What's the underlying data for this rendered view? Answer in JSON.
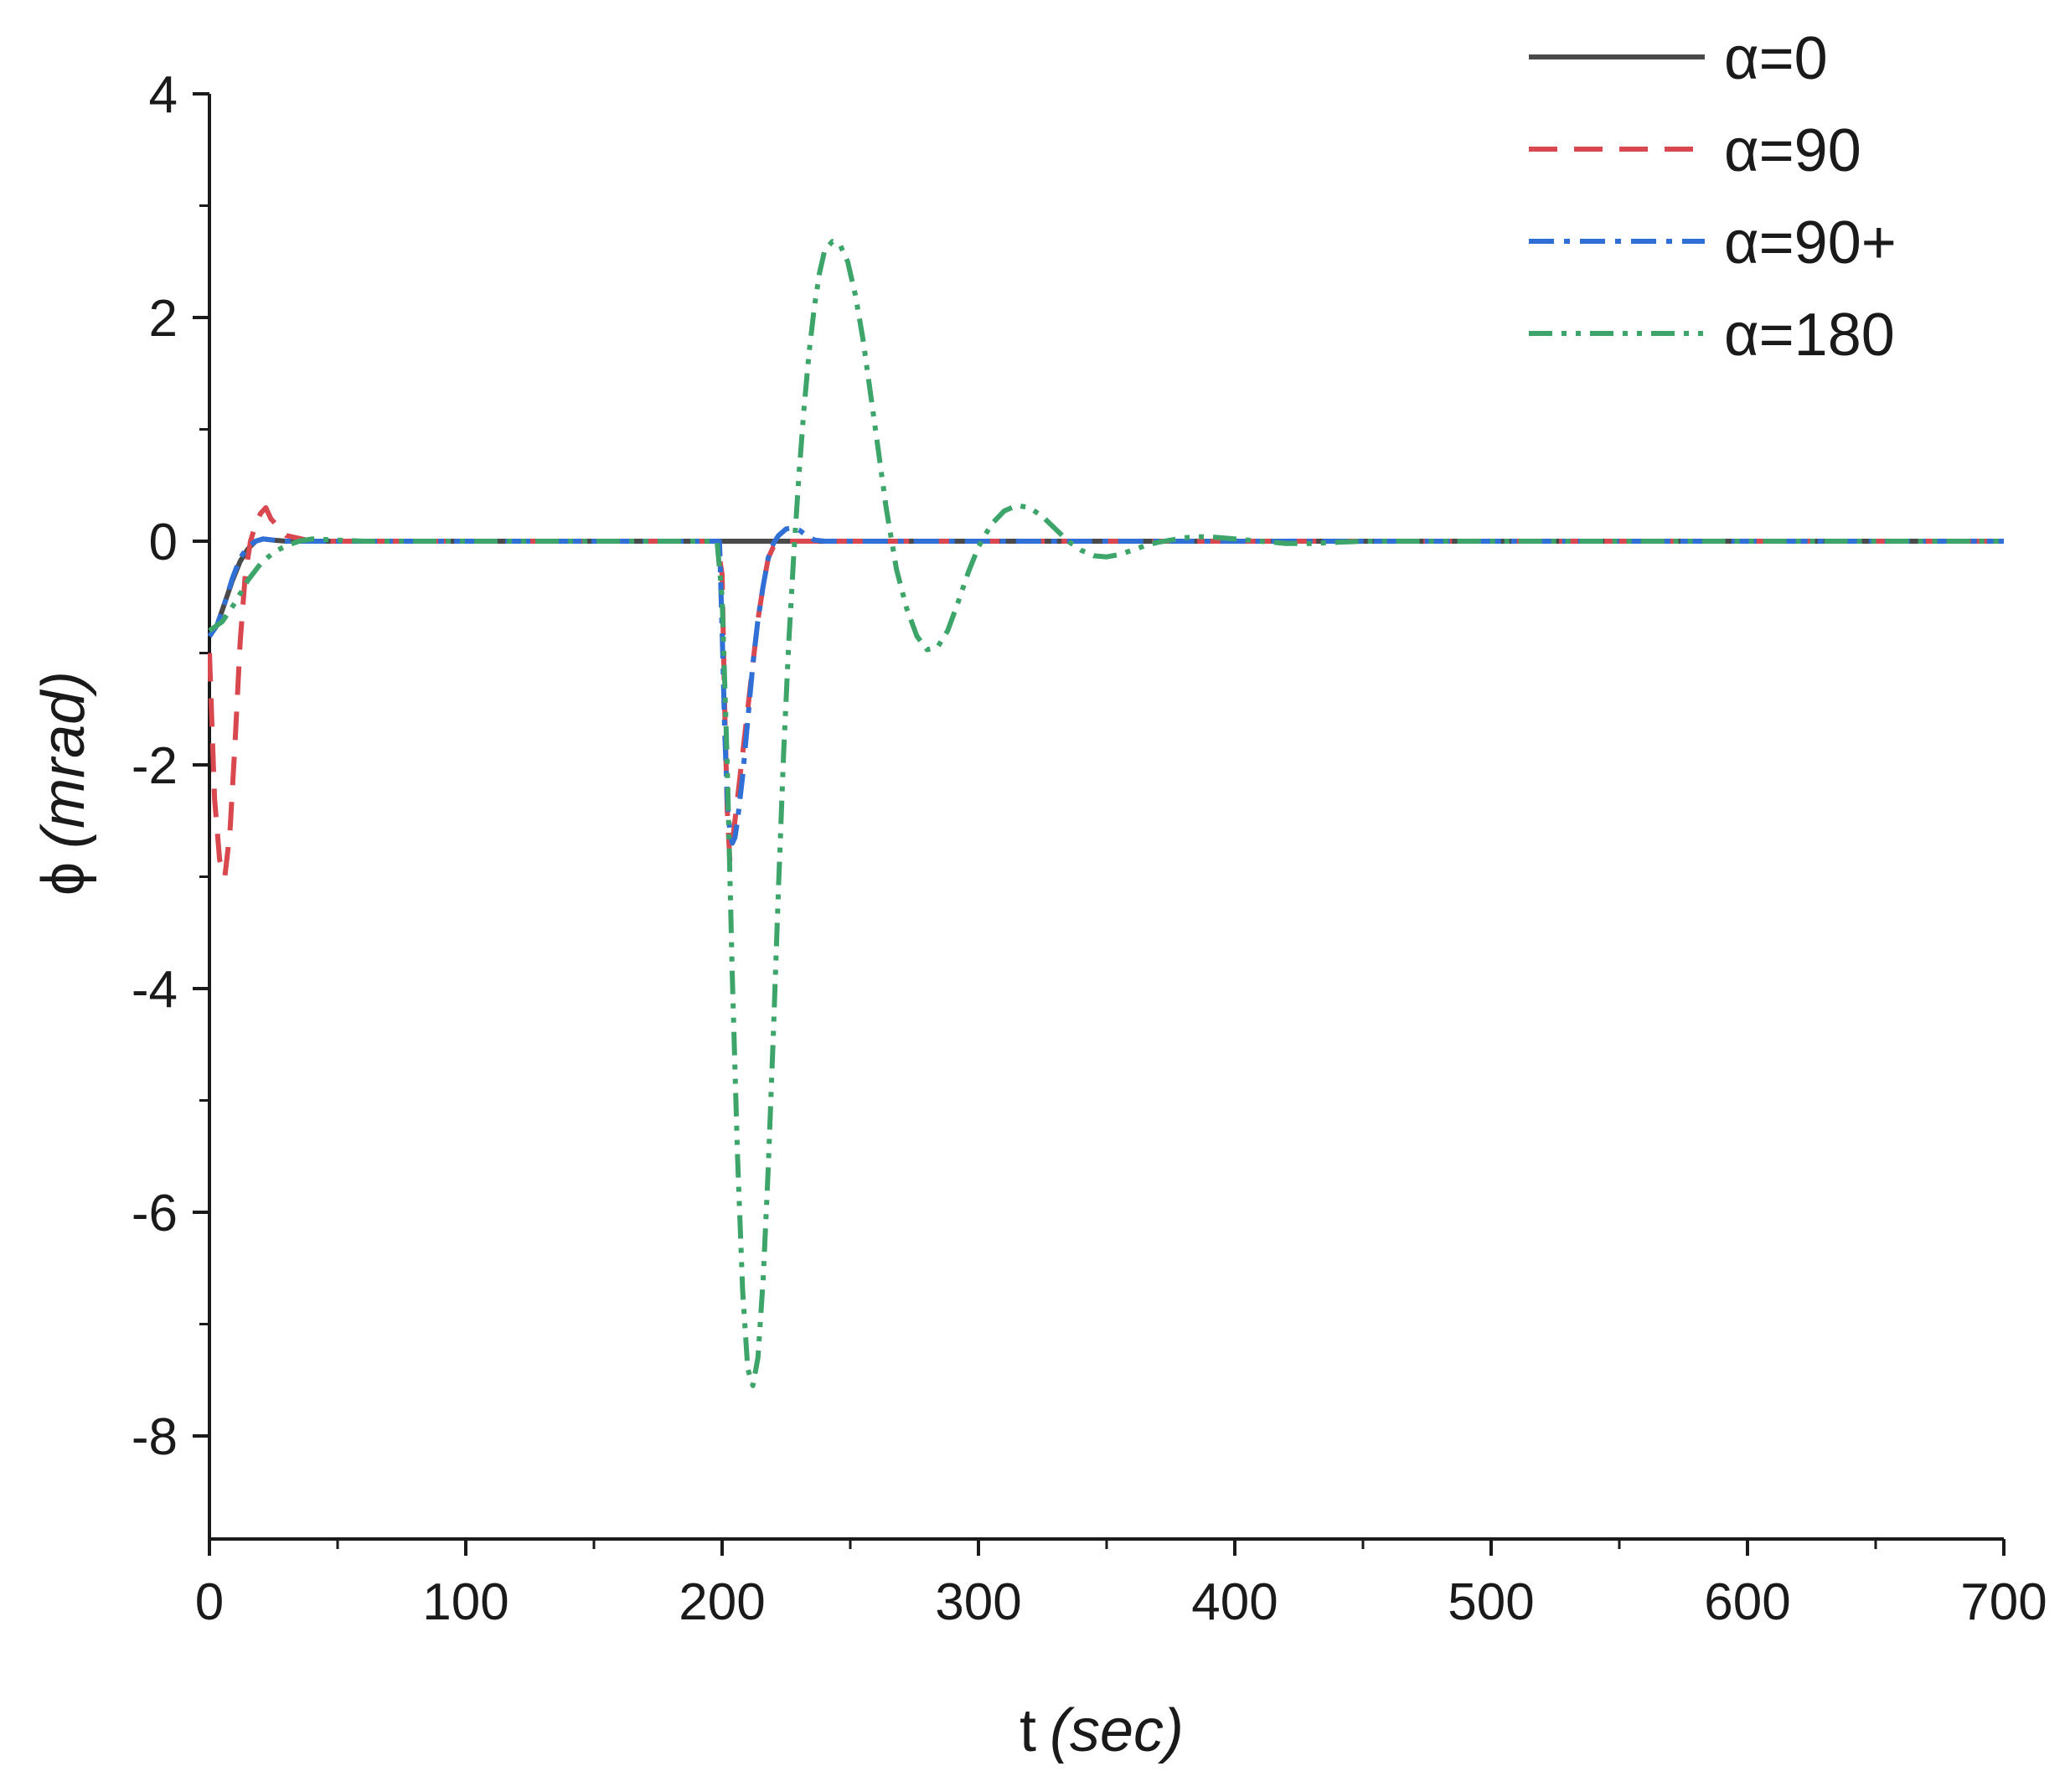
{
  "chart_data": {
    "type": "line",
    "xlabel_main": "t",
    "xlabel_unit": "(sec)",
    "ylabel_main": "ϕ",
    "ylabel_unit": "(mrad)",
    "xlim": [
      0,
      700
    ],
    "ylim": [
      -9,
      4
    ],
    "x_ticks": [
      0,
      100,
      200,
      300,
      400,
      500,
      600,
      700
    ],
    "x_tick_labels": [
      "0",
      "100",
      "200",
      "300",
      "400",
      "500",
      "600",
      "700"
    ],
    "y_ticks": [
      4,
      2,
      0,
      -2,
      -4,
      -6,
      -8
    ],
    "y_tick_labels": [
      "4",
      "2",
      "0",
      "-2",
      "-4",
      "-6",
      "-8"
    ],
    "x_minor_step": 50,
    "y_minor_step": 1,
    "grid": false,
    "legend_position": "top-right",
    "series": [
      {
        "name": "α=0",
        "color": "#4a4a4a",
        "dash": "solid",
        "x": [
          0,
          3,
          6,
          9,
          12,
          15,
          18,
          21,
          25,
          30,
          40,
          60,
          100,
          200,
          300,
          400,
          500,
          600,
          700
        ],
        "y": [
          -0.85,
          -0.75,
          -0.55,
          -0.35,
          -0.18,
          -0.07,
          0.0,
          0.02,
          0.01,
          0.0,
          0.0,
          0.0,
          0.0,
          0.0,
          0.0,
          0.0,
          0.0,
          0.0,
          0.0
        ]
      },
      {
        "name": "α=90",
        "color": "#d9474f",
        "dash": "dashed",
        "x": [
          0,
          2,
          4,
          6,
          8,
          10,
          12,
          14,
          16,
          18,
          20,
          22,
          24,
          30,
          40,
          60,
          100,
          150,
          198,
          200,
          201,
          202,
          203,
          204,
          206,
          208,
          210,
          212,
          214,
          216,
          218,
          220,
          225,
          240,
          300,
          400,
          500,
          600,
          700
        ],
        "y": [
          -1.0,
          -2.3,
          -2.85,
          -3.0,
          -2.6,
          -1.8,
          -0.9,
          -0.3,
          0.0,
          0.15,
          0.25,
          0.3,
          0.2,
          0.05,
          0.0,
          0.0,
          0.0,
          0.0,
          0.0,
          -0.3,
          -1.5,
          -2.4,
          -2.85,
          -2.7,
          -2.3,
          -1.9,
          -1.5,
          -1.1,
          -0.7,
          -0.4,
          -0.15,
          -0.05,
          0.0,
          0.0,
          0.0,
          0.0,
          0.0,
          0.0,
          0.0
        ]
      },
      {
        "name": "α=90+",
        "color": "#2f6fd6",
        "dash": "dashdot",
        "x": [
          0,
          3,
          6,
          9,
          12,
          15,
          18,
          21,
          25,
          30,
          40,
          60,
          100,
          150,
          199,
          200,
          201,
          202,
          203,
          204,
          205,
          206,
          207,
          208,
          210,
          212,
          214,
          216,
          218,
          220,
          222,
          225,
          228,
          230,
          233,
          236,
          240,
          300,
          400,
          500,
          600,
          700
        ],
        "y": [
          -0.85,
          -0.75,
          -0.55,
          -0.33,
          -0.15,
          -0.05,
          0.0,
          0.02,
          0.01,
          0.0,
          0.0,
          0.0,
          0.0,
          0.0,
          0.0,
          -0.8,
          -1.7,
          -2.3,
          -2.6,
          -2.7,
          -2.65,
          -2.5,
          -2.3,
          -2.1,
          -1.6,
          -1.1,
          -0.7,
          -0.4,
          -0.15,
          -0.02,
          0.05,
          0.11,
          0.12,
          0.1,
          0.05,
          0.01,
          0.0,
          0.0,
          0.0,
          0.0,
          0.0,
          0.0
        ]
      },
      {
        "name": "α=180",
        "color": "#3da56a",
        "dash": "dashdotdot",
        "x": [
          0,
          5,
          10,
          15,
          20,
          25,
          30,
          35,
          40,
          50,
          60,
          100,
          150,
          198,
          200,
          202,
          204,
          206,
          208,
          210,
          212,
          214,
          216,
          218,
          220,
          222,
          224,
          226,
          228,
          230,
          232,
          234,
          236,
          238,
          240,
          243,
          246,
          249,
          252,
          255,
          258,
          261,
          264,
          268,
          272,
          276,
          280,
          284,
          288,
          292,
          296,
          300,
          305,
          310,
          315,
          320,
          325,
          330,
          335,
          340,
          345,
          350,
          355,
          360,
          365,
          370,
          375,
          380,
          385,
          390,
          395,
          400,
          410,
          420,
          430,
          440,
          450,
          500,
          600,
          700
        ],
        "y": [
          -0.8,
          -0.72,
          -0.55,
          -0.35,
          -0.2,
          -0.1,
          -0.04,
          0.0,
          0.02,
          0.01,
          0.0,
          0.0,
          0.0,
          0.0,
          -0.5,
          -2.0,
          -3.9,
          -5.5,
          -6.7,
          -7.4,
          -7.55,
          -7.3,
          -6.6,
          -5.6,
          -4.4,
          -3.1,
          -1.9,
          -0.9,
          -0.1,
          0.6,
          1.2,
          1.7,
          2.1,
          2.4,
          2.6,
          2.68,
          2.65,
          2.5,
          2.2,
          1.8,
          1.3,
          0.8,
          0.3,
          -0.25,
          -0.6,
          -0.85,
          -0.97,
          -0.95,
          -0.8,
          -0.55,
          -0.28,
          -0.05,
          0.15,
          0.27,
          0.32,
          0.3,
          0.22,
          0.11,
          0.0,
          -0.08,
          -0.13,
          -0.14,
          -0.12,
          -0.08,
          -0.04,
          -0.01,
          0.01,
          0.03,
          0.04,
          0.04,
          0.03,
          0.02,
          0.0,
          -0.02,
          -0.02,
          -0.01,
          0.0,
          0.0,
          0.0,
          0.0
        ]
      }
    ]
  }
}
